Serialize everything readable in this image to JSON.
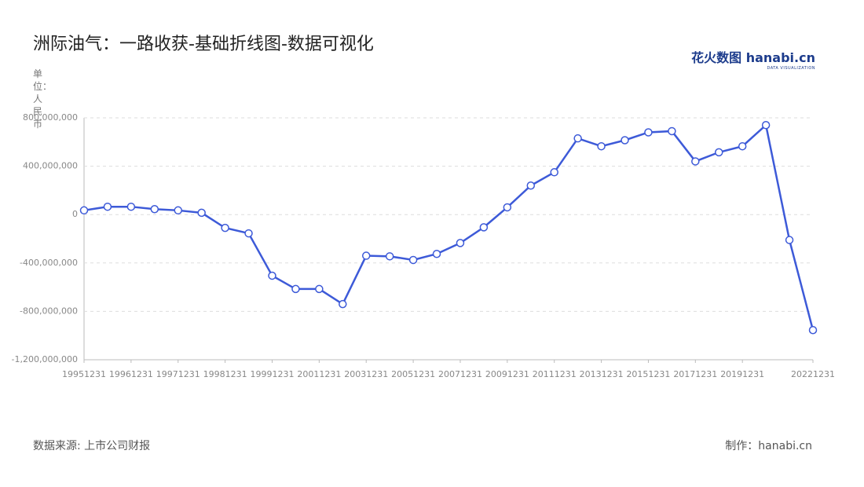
{
  "chart_data": {
    "type": "line",
    "title": "洲际油气：一路收获-基础折线图-数据可视化",
    "y_label": "单位：人民币",
    "source": "数据来源: 上市公司财报",
    "credit": "制作：hanabi.cn",
    "logo": "花火数图 hanabi.cn",
    "logo_sub": "DATA VISUALIZATION",
    "categories": [
      "19951231",
      null,
      "19961231",
      null,
      "19971231",
      null,
      "19981231",
      null,
      "19991231",
      null,
      "20011231",
      null,
      "20031231",
      null,
      "20051231",
      null,
      "20071231",
      null,
      "20091231",
      null,
      "20111231",
      null,
      "20131231",
      null,
      "20151231",
      null,
      "20171231",
      null,
      "20191231",
      null,
      null,
      "20221231"
    ],
    "series": [
      {
        "name": "洲际油气",
        "color": "#3d5ad8",
        "values": [
          35000000,
          65000000,
          65000000,
          45000000,
          35000000,
          15000000,
          -110000000,
          -155000000,
          -505000000,
          -615000000,
          -615000000,
          -740000000,
          -340000000,
          -345000000,
          -375000000,
          -325000000,
          -235000000,
          -105000000,
          60000000,
          240000000,
          350000000,
          630000000,
          565000000,
          615000000,
          680000000,
          690000000,
          440000000,
          515000000,
          565000000,
          740000000,
          -210000000,
          -955000000
        ]
      }
    ],
    "ylim": [
      -1200000000,
      800000000
    ],
    "yticks": [
      {
        "value": -1200000000,
        "label": "-1,200,000,000"
      },
      {
        "value": -800000000,
        "label": "-800,000,000"
      },
      {
        "value": -400000000,
        "label": "-400,000,000"
      },
      0,
      {
        "value": 400000000,
        "label": "400,000,000"
      },
      {
        "value": 800000000,
        "label": "800,000,000"
      }
    ],
    "grid": true
  }
}
